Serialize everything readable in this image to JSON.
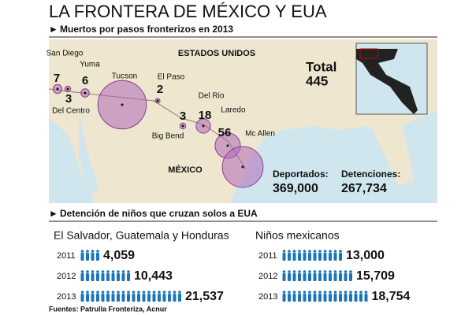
{
  "title": "LA FRONTERA DE MÉXICO Y EUA",
  "map": {
    "heading": "Muertos por pasos fronterizos en 2013",
    "country_us": "ESTADOS UNIDOS",
    "country_mx": "MÉXICO",
    "points": [
      {
        "name": "San Diego",
        "value": 7
      },
      {
        "name": "Del Centro",
        "value": 3
      },
      {
        "name": "Yuma",
        "value": 6
      },
      {
        "name": "Tucson",
        "value": 205
      },
      {
        "name": "El Paso",
        "value": 2
      },
      {
        "name": "Big Bend",
        "value": 3
      },
      {
        "name": "Del Rio",
        "value": 18
      },
      {
        "name": "Laredo",
        "value": 56
      },
      {
        "name": "Mc Allen",
        "value": 145
      }
    ],
    "total_label": "Total",
    "total": 445,
    "deported_label": "Deportados:",
    "deported": "369,000",
    "detentions_label": "Detenciones:",
    "detentions": "267,734"
  },
  "children": {
    "heading": "Detención de niños que cruzan solos a EUA",
    "groups": [
      {
        "title": "El Salvador, Guatemala y Honduras",
        "rows": [
          {
            "year": "2011",
            "value": 4059,
            "label": "4,059"
          },
          {
            "year": "2012",
            "value": 10443,
            "label": "10,443"
          },
          {
            "year": "2013",
            "value": 21537,
            "label": "21,537"
          }
        ]
      },
      {
        "title": "Niños mexicanos",
        "rows": [
          {
            "year": "2011",
            "value": 13000,
            "label": "13,000"
          },
          {
            "year": "2012",
            "value": 15709,
            "label": "15,709"
          },
          {
            "year": "2013",
            "value": 18754,
            "label": "18,754"
          }
        ]
      }
    ]
  },
  "source": "Fuentes: Patrulla Fronteriza, Acnur"
}
